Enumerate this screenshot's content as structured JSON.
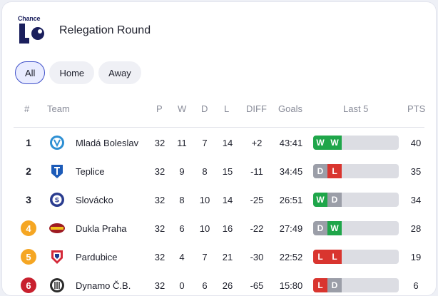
{
  "header": {
    "logo_text": "Chance",
    "title": "Relegation Round"
  },
  "tabs": [
    {
      "label": "All",
      "active": true
    },
    {
      "label": "Home",
      "active": false
    },
    {
      "label": "Away",
      "active": false
    }
  ],
  "columns": {
    "rank": "#",
    "team": "Team",
    "p": "P",
    "w": "W",
    "d": "D",
    "l": "L",
    "diff": "DIFF",
    "goals": "Goals",
    "last5": "Last 5",
    "pts": "PTS"
  },
  "colors": {
    "win": "#1fa64a",
    "draw": "#9b9ea8",
    "loss": "#d9352f",
    "badge_orange": "#f5a623",
    "badge_red": "#c8202e",
    "active_tab_border": "#3e4fc9"
  },
  "rows": [
    {
      "rank": "1",
      "badge": null,
      "crest_icon": "mlada-boleslav-crest-icon",
      "team": "Mladá Boleslav",
      "p": "32",
      "w": "11",
      "d": "7",
      "l": "14",
      "diff": "+2",
      "goals": "43:41",
      "form": [
        "W",
        "W"
      ],
      "pts": "40"
    },
    {
      "rank": "2",
      "badge": null,
      "crest_icon": "teplice-crest-icon",
      "team": "Teplice",
      "p": "32",
      "w": "9",
      "d": "8",
      "l": "15",
      "diff": "-11",
      "goals": "34:45",
      "form": [
        "D",
        "L"
      ],
      "pts": "35"
    },
    {
      "rank": "3",
      "badge": null,
      "crest_icon": "slovacko-crest-icon",
      "team": "Slovácko",
      "p": "32",
      "w": "8",
      "d": "10",
      "l": "14",
      "diff": "-25",
      "goals": "26:51",
      "form": [
        "W",
        "D"
      ],
      "pts": "34"
    },
    {
      "rank": "4",
      "badge": "orange",
      "crest_icon": "dukla-praha-crest-icon",
      "team": "Dukla Praha",
      "p": "32",
      "w": "6",
      "d": "10",
      "l": "16",
      "diff": "-22",
      "goals": "27:49",
      "form": [
        "D",
        "W"
      ],
      "pts": "28"
    },
    {
      "rank": "5",
      "badge": "orange",
      "crest_icon": "pardubice-crest-icon",
      "team": "Pardubice",
      "p": "32",
      "w": "4",
      "d": "7",
      "l": "21",
      "diff": "-30",
      "goals": "22:52",
      "form": [
        "L",
        "L"
      ],
      "pts": "19"
    },
    {
      "rank": "6",
      "badge": "red",
      "crest_icon": "dynamo-cb-crest-icon",
      "team": "Dynamo Č.B.",
      "p": "32",
      "w": "0",
      "d": "6",
      "l": "26",
      "diff": "-65",
      "goals": "15:80",
      "form": [
        "L",
        "D"
      ],
      "pts": "6"
    }
  ]
}
